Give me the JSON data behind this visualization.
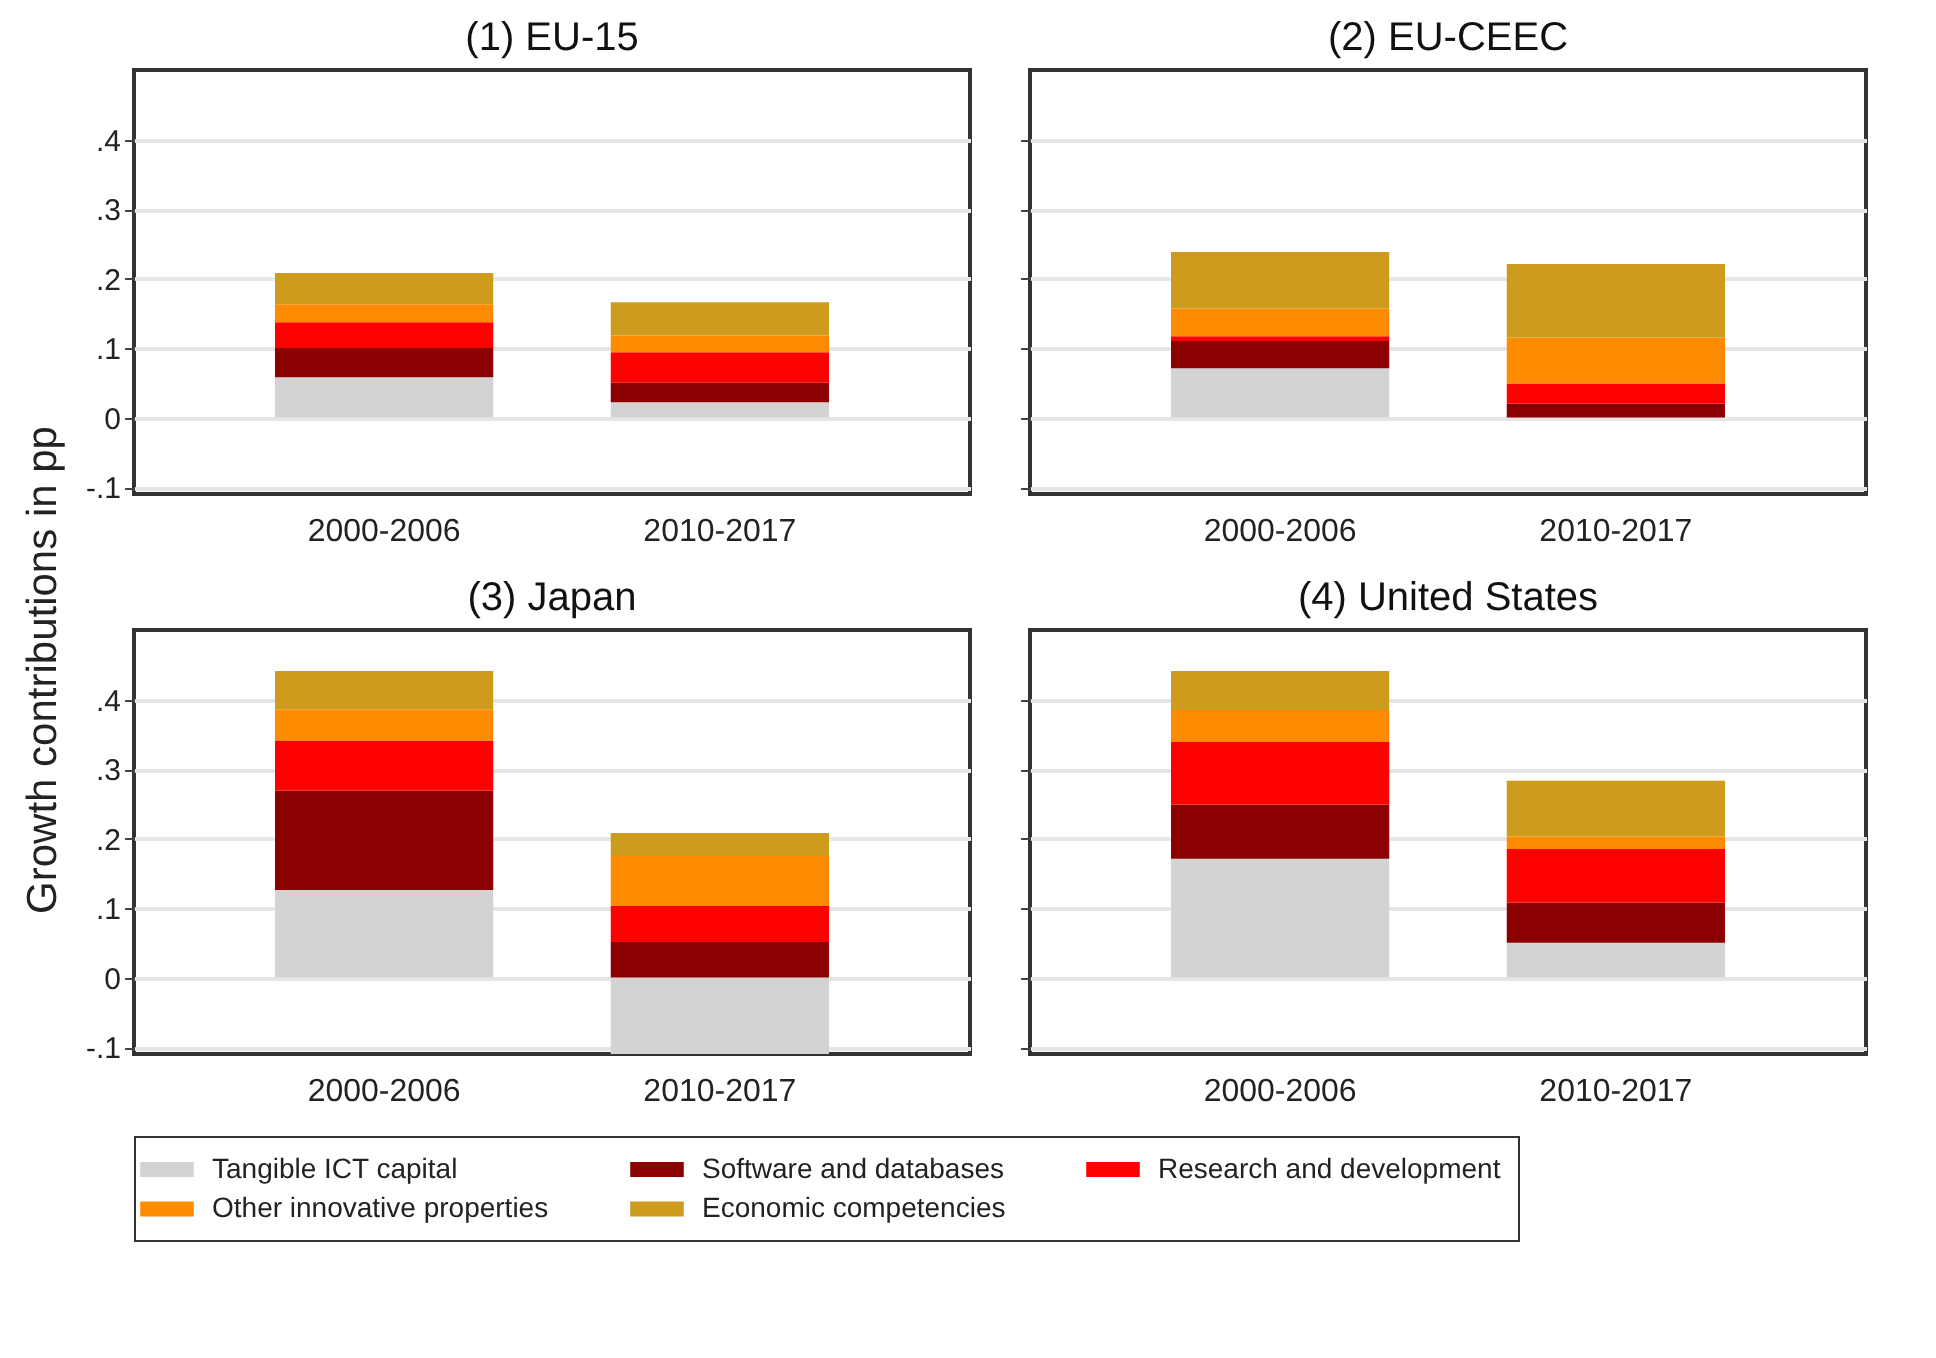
{
  "chart_data": [
    {
      "type": "bar",
      "title": "(1) EU-15",
      "ylabel": "Growth contributions in pp",
      "categories": [
        "2000-2006",
        "2010-2017"
      ],
      "stacked": true,
      "ylim": [
        -0.11,
        0.5
      ],
      "yticks": [
        {
          "value": -0.1,
          "label": "-.1"
        },
        {
          "value": 0,
          "label": "0"
        },
        {
          "value": 0.1,
          "label": ".1"
        },
        {
          "value": 0.2,
          "label": ".2"
        },
        {
          "value": 0.3,
          "label": ".3"
        },
        {
          "value": 0.4,
          "label": ".4"
        }
      ],
      "grid": "y",
      "legend": "bottom",
      "series": [
        {
          "name": "Tangible ICT capital",
          "color": "#d3d3d3",
          "values": [
            0.058,
            0.022
          ]
        },
        {
          "name": "Software and databases",
          "color": "#8b0000",
          "values": [
            0.042,
            0.028
          ]
        },
        {
          "name": "Research and development",
          "color": "#ff0000",
          "values": [
            0.037,
            0.044
          ]
        },
        {
          "name": "Other innovative properties",
          "color": "#ff8c00",
          "values": [
            0.026,
            0.024
          ]
        },
        {
          "name": "Economic competencies",
          "color": "#cd9b1d",
          "values": [
            0.045,
            0.048
          ]
        }
      ]
    },
    {
      "type": "bar",
      "title": "(2) EU-CEEC",
      "categories": [
        "2000-2006",
        "2010-2017"
      ],
      "stacked": true,
      "ylim": [
        -0.11,
        0.5
      ],
      "yticks": [
        {
          "value": -0.1,
          "label": "-.1"
        },
        {
          "value": 0,
          "label": "0"
        },
        {
          "value": 0.1,
          "label": ".1"
        },
        {
          "value": 0.2,
          "label": ".2"
        },
        {
          "value": 0.3,
          "label": ".3"
        },
        {
          "value": 0.4,
          "label": ".4"
        }
      ],
      "grid": "y",
      "legend": "bottom",
      "tick_labels": "x",
      "series": [
        {
          "name": "Tangible ICT capital",
          "color": "#d3d3d3",
          "values": [
            0.071,
            null
          ]
        },
        {
          "name": "Software and databases",
          "color": "#8b0000",
          "values": [
            0.039,
            0.02
          ]
        },
        {
          "name": "Research and development",
          "color": "#ff0000",
          "values": [
            0.007,
            0.029
          ]
        },
        {
          "name": "Other innovative properties",
          "color": "#ff8c00",
          "values": [
            0.04,
            0.066
          ]
        },
        {
          "name": "Economic competencies",
          "color": "#cd9b1d",
          "values": [
            0.081,
            0.106
          ]
        }
      ]
    },
    {
      "type": "bar",
      "title": "(3) Japan",
      "categories": [
        "2000-2006",
        "2010-2017"
      ],
      "stacked": true,
      "ylim": [
        -0.11,
        0.5
      ],
      "yticks": [
        {
          "value": -0.1,
          "label": "-.1"
        },
        {
          "value": 0,
          "label": "0"
        },
        {
          "value": 0.1,
          "label": ".1"
        },
        {
          "value": 0.2,
          "label": ".2"
        },
        {
          "value": 0.3,
          "label": ".3"
        },
        {
          "value": 0.4,
          "label": ".4"
        }
      ],
      "grid": "y",
      "legend": "bottom",
      "series": [
        {
          "name": "Tangible ICT capital",
          "color": "#d3d3d3",
          "values": [
            0.126,
            -0.11
          ]
        },
        {
          "name": "Software and databases",
          "color": "#8b0000",
          "values": [
            0.143,
            0.051
          ]
        },
        {
          "name": "Research and development",
          "color": "#ff0000",
          "values": [
            0.072,
            0.052
          ]
        },
        {
          "name": "Other innovative properties",
          "color": "#ff8c00",
          "values": [
            0.045,
            0.072
          ]
        },
        {
          "name": "Economic competencies",
          "color": "#cd9b1d",
          "values": [
            0.055,
            0.033
          ]
        }
      ]
    },
    {
      "type": "bar",
      "title": "(4) United States",
      "categories": [
        "2000-2006",
        "2010-2017"
      ],
      "stacked": true,
      "ylim": [
        -0.11,
        0.5
      ],
      "yticks": [
        {
          "value": -0.1,
          "label": "-.1"
        },
        {
          "value": 0,
          "label": "0"
        },
        {
          "value": 0.1,
          "label": ".1"
        },
        {
          "value": 0.2,
          "label": ".2"
        },
        {
          "value": 0.3,
          "label": ".3"
        },
        {
          "value": 0.4,
          "label": ".4"
        }
      ],
      "grid": "y",
      "legend": "bottom",
      "tick_labels": "x",
      "series": [
        {
          "name": "Tangible ICT capital",
          "color": "#d3d3d3",
          "values": [
            0.171,
            0.05
          ]
        },
        {
          "name": "Software and databases",
          "color": "#8b0000",
          "values": [
            0.078,
            0.058
          ]
        },
        {
          "name": "Research and development",
          "color": "#ff0000",
          "values": [
            0.09,
            0.077
          ]
        },
        {
          "name": "Other innovative properties",
          "color": "#ff8c00",
          "values": [
            0.046,
            0.018
          ]
        },
        {
          "name": "Economic competencies",
          "color": "#cd9b1d",
          "values": [
            0.056,
            0.08
          ]
        }
      ]
    }
  ]
}
